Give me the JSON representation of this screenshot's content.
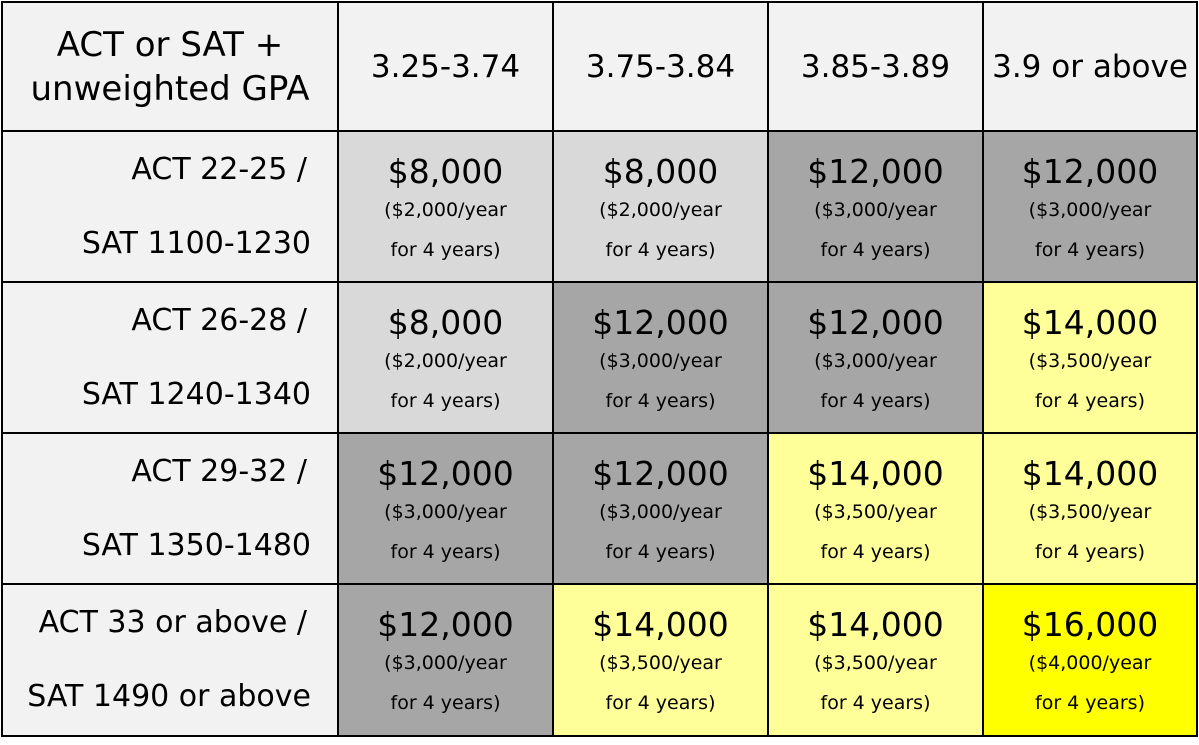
{
  "corner_label": [
    "ACT or SAT +",
    "unweighted GPA"
  ],
  "gpa_ranges": [
    "3.25-3.74",
    "3.75-3.84",
    "3.85-3.89",
    "3.9 or above"
  ],
  "score_rows": [
    {
      "act": "ACT 22-25  /",
      "sat": "SAT 1100-1230"
    },
    {
      "act": "ACT 26-28  /",
      "sat": "SAT 1240-1340"
    },
    {
      "act": "ACT 29-32  /",
      "sat": "SAT 1350-1480"
    },
    {
      "act": "ACT 33 or above /",
      "sat": "SAT 1490 or above"
    }
  ],
  "awards": [
    [
      {
        "amount": "$8,000",
        "per_year": "($2,000/year",
        "duration": "for 4 years)"
      },
      {
        "amount": "$8,000",
        "per_year": "($2,000/year",
        "duration": "for 4 years)"
      },
      {
        "amount": "$12,000",
        "per_year": "($3,000/year",
        "duration": "for 4 years)"
      },
      {
        "amount": "$12,000",
        "per_year": "($3,000/year",
        "duration": "for 4 years)"
      }
    ],
    [
      {
        "amount": "$8,000",
        "per_year": "($2,000/year",
        "duration": "for 4 years)"
      },
      {
        "amount": "$12,000",
        "per_year": "($3,000/year",
        "duration": "for 4 years)"
      },
      {
        "amount": "$12,000",
        "per_year": "($3,000/year",
        "duration": "for 4 years)"
      },
      {
        "amount": "$14,000",
        "per_year": "($3,500/year",
        "duration": "for 4 years)"
      }
    ],
    [
      {
        "amount": "$12,000",
        "per_year": "($3,000/year",
        "duration": "for 4 years)"
      },
      {
        "amount": "$12,000",
        "per_year": "($3,000/year",
        "duration": "for 4 years)"
      },
      {
        "amount": "$14,000",
        "per_year": "($3,500/year",
        "duration": "for 4 years)"
      },
      {
        "amount": "$14,000",
        "per_year": "($3,500/year",
        "duration": "for 4 years)"
      }
    ],
    [
      {
        "amount": "$12,000",
        "per_year": "($3,000/year",
        "duration": "for 4 years)"
      },
      {
        "amount": "$14,000",
        "per_year": "($3,500/year",
        "duration": "for 4 years)"
      },
      {
        "amount": "$14,000",
        "per_year": "($3,500/year",
        "duration": "for 4 years)"
      },
      {
        "amount": "$16,000",
        "per_year": "($4,000/year",
        "duration": "for 4 years)"
      }
    ]
  ],
  "tier_colors": {
    "$8,000": "#d9d9d9",
    "$12,000": "#a6a6a6",
    "$14,000": "#ffff99",
    "$16,000": "#ffff00"
  }
}
